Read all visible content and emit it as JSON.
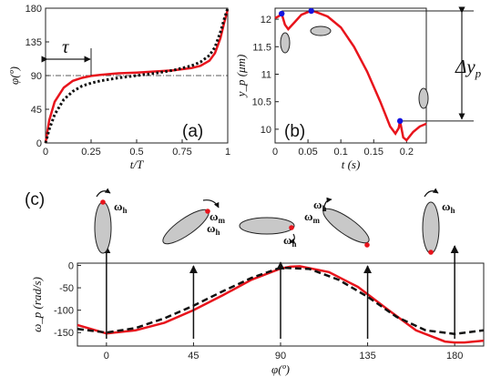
{
  "chart_data": [
    {
      "panel": "(a)",
      "type": "line",
      "xlabel": "t/T",
      "ylabel": "φ(º)",
      "xlim": [
        0,
        1
      ],
      "ylim": [
        0,
        180
      ],
      "xticks": [
        "0",
        "0.25",
        "0.5",
        "0.75",
        "1"
      ],
      "yticks": [
        "0",
        "45",
        "90",
        "135",
        "180"
      ],
      "annotation": "τ",
      "reference_line_y": 90,
      "series": [
        {
          "color": "#e8141c",
          "style": "solid",
          "x": [
            0,
            0.02,
            0.05,
            0.1,
            0.15,
            0.2,
            0.25,
            0.3,
            0.4,
            0.5,
            0.6,
            0.7,
            0.8,
            0.85,
            0.9,
            0.93,
            0.96,
            0.98,
            1.0
          ],
          "y": [
            0,
            30,
            55,
            74,
            83,
            87,
            89.5,
            91,
            93,
            94,
            95.5,
            97,
            100,
            103,
            110,
            120,
            140,
            160,
            178
          ]
        },
        {
          "color": "#111111",
          "style": "dotted",
          "x": [
            0,
            0.02,
            0.05,
            0.1,
            0.15,
            0.2,
            0.25,
            0.3,
            0.4,
            0.5,
            0.6,
            0.7,
            0.8,
            0.85,
            0.9,
            0.93,
            0.96,
            0.98,
            1.0
          ],
          "y": [
            0,
            18,
            38,
            58,
            69,
            76,
            80,
            83,
            87,
            90,
            93,
            97,
            103,
            108,
            117,
            128,
            148,
            165,
            180
          ]
        }
      ]
    },
    {
      "panel": "(b)",
      "type": "line",
      "xlabel": "t (s)",
      "ylabel": "y_p (μm)",
      "xlim": [
        0,
        0.23
      ],
      "ylim": [
        9.75,
        12.2
      ],
      "xticks": [
        "0",
        "0.05",
        "0.1",
        "0.15",
        "0.2"
      ],
      "yticks": [
        "10",
        "10.5",
        "11",
        "11.5",
        "12"
      ],
      "annotation": "Δy_p",
      "series": [
        {
          "color": "#e8141c",
          "style": "solid",
          "x": [
            0,
            0.005,
            0.01,
            0.015,
            0.02,
            0.03,
            0.04,
            0.05,
            0.055,
            0.06,
            0.08,
            0.1,
            0.12,
            0.14,
            0.16,
            0.175,
            0.183,
            0.188,
            0.19,
            0.195,
            0.2,
            0.21,
            0.22,
            0.23
          ],
          "y": [
            12.02,
            12.05,
            12.1,
            11.9,
            11.82,
            11.95,
            12.08,
            12.13,
            12.15,
            12.14,
            12.05,
            11.85,
            11.5,
            11.05,
            10.5,
            10.05,
            9.92,
            10.02,
            10.15,
            9.85,
            9.8,
            9.95,
            10.05,
            10.1
          ]
        }
      ],
      "markers": [
        {
          "x": 0.01,
          "y": 12.1,
          "color": "#1414e0"
        },
        {
          "x": 0.055,
          "y": 12.15,
          "color": "#1414e0"
        },
        {
          "x": 0.19,
          "y": 10.15,
          "color": "#1414e0"
        }
      ]
    },
    {
      "panel": "(c)",
      "type": "line",
      "xlabel": "φ(º)",
      "ylabel": "ω_p (rad/s)",
      "xlim": [
        -15,
        195
      ],
      "ylim": [
        -180,
        5
      ],
      "xticks": [
        "0",
        "45",
        "90",
        "135",
        "180"
      ],
      "yticks": [
        "-150",
        "-100",
        "-50",
        "0"
      ],
      "arrow_positions": [
        0,
        45,
        90,
        135,
        180
      ],
      "series": [
        {
          "color": "#e8141c",
          "style": "solid",
          "x": [
            -15,
            0,
            15,
            30,
            45,
            60,
            75,
            90,
            95,
            100,
            115,
            130,
            145,
            160,
            175,
            180,
            185,
            195
          ],
          "y": [
            -133,
            -152,
            -145,
            -128,
            -100,
            -67,
            -32,
            -7,
            -3,
            -2,
            -15,
            -48,
            -97,
            -145,
            -170,
            -172,
            -172,
            -168
          ]
        },
        {
          "color": "#111111",
          "style": "dashed",
          "x": [
            -15,
            0,
            15,
            30,
            45,
            60,
            75,
            90,
            105,
            120,
            135,
            150,
            165,
            180,
            195
          ],
          "y": [
            -142,
            -150,
            -140,
            -118,
            -90,
            -58,
            -28,
            -5,
            -8,
            -32,
            -70,
            -115,
            -145,
            -153,
            -145
          ]
        }
      ]
    }
  ],
  "labels": {
    "panel_c": "(c)",
    "omega_main": "ω",
    "sub_h": "h",
    "sub_m": "m"
  },
  "colors": {
    "red": "#e8141c",
    "blue": "#1414e0",
    "ellipse_fill": "#c8c8c8"
  }
}
